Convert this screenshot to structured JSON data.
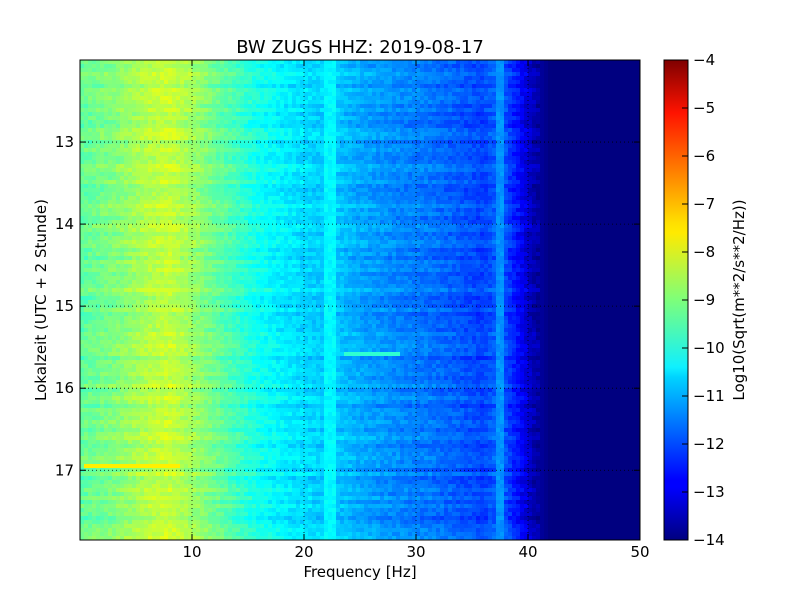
{
  "chart_data": {
    "type": "heatmap",
    "title": "BW ZUGS HHZ: 2019-08-17",
    "xlabel": "Frequency [Hz]",
    "ylabel": "Lokalzeit (UTC + 2 Stunde)",
    "xlim": [
      0,
      50
    ],
    "ylim": [
      12.0,
      17.85
    ],
    "y_inverted": true,
    "x_ticks": [
      10,
      20,
      30,
      40,
      50
    ],
    "y_ticks": [
      13,
      14,
      15,
      16,
      17
    ],
    "grid": true,
    "colormap": "jet",
    "colorbar": {
      "label": "Log10(Sqrt(m**2/s**2/Hz))",
      "range": [
        -14,
        -4
      ],
      "ticks": [
        -4,
        -5,
        -6,
        -7,
        -8,
        -9,
        -10,
        -11,
        -12,
        -13,
        -14
      ]
    },
    "spectrum_profile": {
      "frequency_hz": [
        0,
        3,
        6,
        8,
        10,
        13,
        16,
        19,
        21,
        23,
        25,
        28,
        31,
        34,
        36,
        37.5,
        39,
        40.5,
        42,
        45,
        50
      ],
      "log10_amplitude": [
        -9.3,
        -9.0,
        -8.5,
        -8.3,
        -8.7,
        -9.4,
        -10.1,
        -10.5,
        -10.7,
        -10.8,
        -11.1,
        -11.4,
        -11.6,
        -11.9,
        -12.1,
        -11.7,
        -12.6,
        -13.5,
        -14.0,
        -14.0,
        -14.0
      ]
    },
    "features": [
      {
        "description": "narrow-band high-amplitude band",
        "time": 16.95,
        "frequency_range_hz": [
          0.5,
          9
        ],
        "log10_amplitude": -7.6
      },
      {
        "description": "short spike",
        "time": 15.6,
        "frequency_range_hz": [
          23.5,
          28.5
        ],
        "log10_amplitude": -9.8
      },
      {
        "description": "persistent spectral line",
        "frequency_hz": 37.5,
        "log10_amplitude": -11.3
      },
      {
        "description": "persistent spectral line",
        "frequency_hz": 22.3,
        "log10_amplitude": -10.3
      }
    ]
  }
}
